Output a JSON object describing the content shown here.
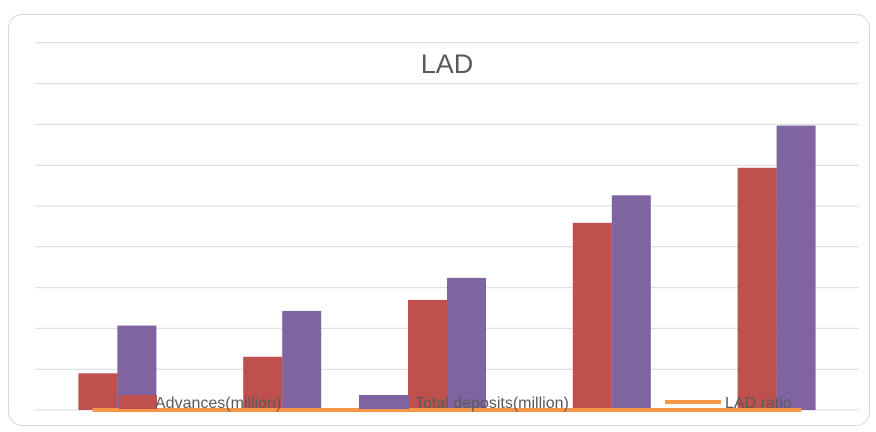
{
  "chart_data": {
    "type": "bar",
    "title": "LAD",
    "xlabel": "",
    "ylabel": "",
    "categories": [
      "",
      "",
      "",
      "",
      ""
    ],
    "ylim": [
      0,
      10
    ],
    "grid": true,
    "legend_position": "bottom",
    "series": [
      {
        "name": "Advances(million)",
        "type": "bar",
        "color": "#c0504d",
        "values": [
          1.0,
          1.45,
          3.0,
          5.1,
          6.6
        ]
      },
      {
        "name": "Total deposits(million)",
        "type": "bar",
        "color": "#8064a2",
        "values": [
          2.3,
          2.7,
          3.6,
          5.85,
          7.75
        ]
      },
      {
        "name": "LAD ratio",
        "type": "line",
        "color": "#f79646",
        "values": [
          0,
          0,
          0,
          0,
          0
        ]
      }
    ]
  }
}
